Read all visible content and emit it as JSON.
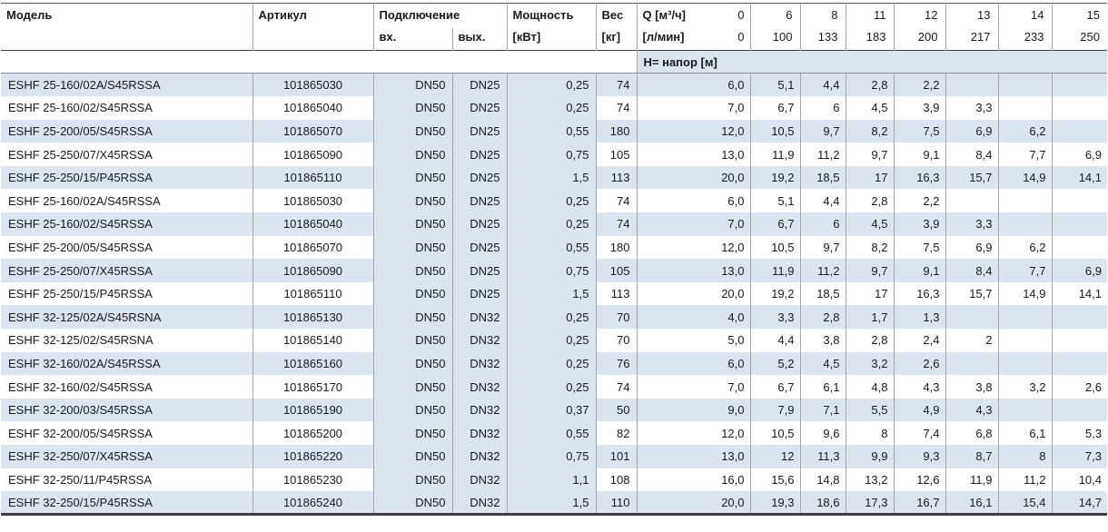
{
  "table": {
    "colors": {
      "stripe": "#dbe5f1"
    },
    "header": {
      "model": "Модель",
      "article": "Артикул",
      "connection": "Подключение",
      "inlet": "вх.",
      "outlet": "вых.",
      "power": "Мощность",
      "power_unit": "[кВт]",
      "weight": "Вес",
      "weight_unit": "[кг]",
      "q_label": "Q [м³/ч]",
      "q_zero": "0",
      "lmin_label": "[л/мин]",
      "lmin_zero": "0",
      "q_ticks": [
        "6",
        "8",
        "11",
        "12",
        "13",
        "14",
        "15"
      ],
      "lmin_ticks": [
        "100",
        "133",
        "183",
        "200",
        "217",
        "233",
        "250"
      ],
      "head_row_label": "Н= напор [м]"
    },
    "rows": [
      {
        "model": "ESHF 25-160/02A/S45RSSA",
        "article": "101865030",
        "inlet": "DN50",
        "outlet": "DN25",
        "power": "0,25",
        "weight": "74",
        "h": [
          "6,0",
          "5,1",
          "4,4",
          "2,8",
          "2,2",
          "",
          "",
          ""
        ]
      },
      {
        "model": "ESHF 25-160/02/S45RSSA",
        "article": "101865040",
        "inlet": "DN50",
        "outlet": "DN25",
        "power": "0,25",
        "weight": "74",
        "h": [
          "7,0",
          "6,7",
          "6",
          "4,5",
          "3,9",
          "3,3",
          "",
          ""
        ]
      },
      {
        "model": "ESHF 25-200/05/S45RSSA",
        "article": "101865070",
        "inlet": "DN50",
        "outlet": "DN25",
        "power": "0,55",
        "weight": "180",
        "h": [
          "12,0",
          "10,5",
          "9,7",
          "8,2",
          "7,5",
          "6,9",
          "6,2",
          ""
        ]
      },
      {
        "model": "ESHF 25-250/07/X45RSSA",
        "article": "101865090",
        "inlet": "DN50",
        "outlet": "DN25",
        "power": "0,75",
        "weight": "105",
        "h": [
          "13,0",
          "11,9",
          "11,2",
          "9,7",
          "9,1",
          "8,4",
          "7,7",
          "6,9"
        ]
      },
      {
        "model": "ESHF 25-250/15/P45RSSA",
        "article": "101865110",
        "inlet": "DN50",
        "outlet": "DN25",
        "power": "1,5",
        "weight": "113",
        "h": [
          "20,0",
          "19,2",
          "18,5",
          "17",
          "16,3",
          "15,7",
          "14,9",
          "14,1"
        ]
      },
      {
        "model": "ESHF 25-160/02A/S45RSSA",
        "article": "101865030",
        "inlet": "DN50",
        "outlet": "DN25",
        "power": "0,25",
        "weight": "74",
        "h": [
          "6,0",
          "5,1",
          "4,4",
          "2,8",
          "2,2",
          "",
          "",
          ""
        ]
      },
      {
        "model": "ESHF 25-160/02/S45RSSA",
        "article": "101865040",
        "inlet": "DN50",
        "outlet": "DN25",
        "power": "0,25",
        "weight": "74",
        "h": [
          "7,0",
          "6,7",
          "6",
          "4,5",
          "3,9",
          "3,3",
          "",
          ""
        ]
      },
      {
        "model": "ESHF 25-200/05/S45RSSA",
        "article": "101865070",
        "inlet": "DN50",
        "outlet": "DN25",
        "power": "0,55",
        "weight": "180",
        "h": [
          "12,0",
          "10,5",
          "9,7",
          "8,2",
          "7,5",
          "6,9",
          "6,2",
          ""
        ]
      },
      {
        "model": "ESHF 25-250/07/X45RSSA",
        "article": "101865090",
        "inlet": "DN50",
        "outlet": "DN25",
        "power": "0,75",
        "weight": "105",
        "h": [
          "13,0",
          "11,9",
          "11,2",
          "9,7",
          "9,1",
          "8,4",
          "7,7",
          "6,9"
        ]
      },
      {
        "model": "ESHF 25-250/15/P45RSSA",
        "article": "101865110",
        "inlet": "DN50",
        "outlet": "DN25",
        "power": "1,5",
        "weight": "113",
        "h": [
          "20,0",
          "19,2",
          "18,5",
          "17",
          "16,3",
          "15,7",
          "14,9",
          "14,1"
        ]
      },
      {
        "model": "ESHF 32-125/02A/S45RSNA",
        "article": "101865130",
        "inlet": "DN50",
        "outlet": "DN32",
        "power": "0,25",
        "weight": "70",
        "h": [
          "4,0",
          "3,3",
          "2,8",
          "1,7",
          "1,3",
          "",
          "",
          ""
        ]
      },
      {
        "model": "ESHF 32-125/02/S45RSNA",
        "article": "101865140",
        "inlet": "DN50",
        "outlet": "DN32",
        "power": "0,25",
        "weight": "70",
        "h": [
          "5,0",
          "4,4",
          "3,8",
          "2,8",
          "2,4",
          "2",
          "",
          ""
        ]
      },
      {
        "model": "ESHF 32-160/02A/S45RSSA",
        "article": "101865160",
        "inlet": "DN50",
        "outlet": "DN32",
        "power": "0,25",
        "weight": "76",
        "h": [
          "6,0",
          "5,2",
          "4,5",
          "3,2",
          "2,6",
          "",
          "",
          ""
        ]
      },
      {
        "model": "ESHF 32-160/02/S45RSSA",
        "article": "101865170",
        "inlet": "DN50",
        "outlet": "DN32",
        "power": "0,25",
        "weight": "74",
        "h": [
          "7,0",
          "6,7",
          "6,1",
          "4,8",
          "4,3",
          "3,8",
          "3,2",
          "2,6"
        ]
      },
      {
        "model": "ESHF 32-200/03/S45RSSA",
        "article": "101865190",
        "inlet": "DN50",
        "outlet": "DN32",
        "power": "0,37",
        "weight": "50",
        "h": [
          "9,0",
          "7,9",
          "7,1",
          "5,5",
          "4,9",
          "4,3",
          "",
          ""
        ]
      },
      {
        "model": "ESHF 32-200/05/S45RSSA",
        "article": "101865200",
        "inlet": "DN50",
        "outlet": "DN32",
        "power": "0,55",
        "weight": "82",
        "h": [
          "12,0",
          "10,5",
          "9,6",
          "8",
          "7,4",
          "6,8",
          "6,1",
          "5,3"
        ]
      },
      {
        "model": "ESHF 32-250/07/X45RSSA",
        "article": "101865220",
        "inlet": "DN50",
        "outlet": "DN32",
        "power": "0,75",
        "weight": "101",
        "h": [
          "13,0",
          "12",
          "11,3",
          "9,9",
          "9,3",
          "8,7",
          "8",
          "7,3"
        ]
      },
      {
        "model": "ESHF 32-250/11/P45RSSA",
        "article": "101865230",
        "inlet": "DN50",
        "outlet": "DN32",
        "power": "1,1",
        "weight": "108",
        "h": [
          "16,0",
          "15,6",
          "14,8",
          "13,2",
          "12,6",
          "11,9",
          "11,2",
          "10,4"
        ]
      },
      {
        "model": "ESHF 32-250/15/P45RSSA",
        "article": "101865240",
        "inlet": "DN50",
        "outlet": "DN32",
        "power": "1,5",
        "weight": "110",
        "h": [
          "20,0",
          "19,3",
          "18,6",
          "17,3",
          "16,7",
          "16,1",
          "15,4",
          "14,7"
        ]
      }
    ]
  }
}
